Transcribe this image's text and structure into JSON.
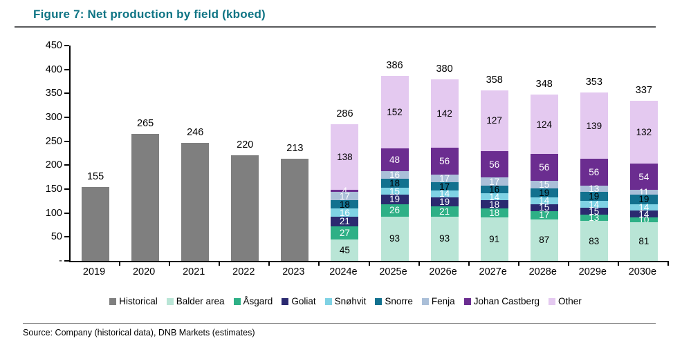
{
  "figure": {
    "title": "Figure 7: Net production by field (kboed)",
    "source": "Source: Company (historical data), DNB Markets (estimates)",
    "title_color": "#0e7484"
  },
  "chart_data": {
    "type": "bar",
    "subtype": "stacked",
    "title": "Net production by field (kboed)",
    "xlabel": "",
    "ylabel": "",
    "ylim": [
      0,
      450
    ],
    "grid": false,
    "legend_position": "bottom",
    "yticks": [
      {
        "value": 450,
        "label": "450"
      },
      {
        "value": 400,
        "label": "400"
      },
      {
        "value": 350,
        "label": "350"
      },
      {
        "value": 300,
        "label": "300"
      },
      {
        "value": 250,
        "label": "250"
      },
      {
        "value": 200,
        "label": "200"
      },
      {
        "value": 150,
        "label": "150"
      },
      {
        "value": 100,
        "label": "100"
      },
      {
        "value": 50,
        "label": "50"
      },
      {
        "value": 0,
        "label": "-"
      }
    ],
    "categories": [
      "2019",
      "2020",
      "2021",
      "2022",
      "2023",
      "2024e",
      "2025e",
      "2026e",
      "2027e",
      "2028e",
      "2029e",
      "2030e"
    ],
    "totals": [
      155,
      265,
      246,
      220,
      213,
      286,
      386,
      380,
      358,
      348,
      353,
      337
    ],
    "series": [
      {
        "name": "Historical",
        "color": "#7f7f7f",
        "label_color": "#000000",
        "inside_labels": false,
        "values": [
          155,
          265,
          246,
          220,
          213,
          0,
          0,
          0,
          0,
          0,
          0,
          0
        ]
      },
      {
        "name": "Balder area",
        "color": "#b9e5d6",
        "label_color": "#000000",
        "inside_labels": true,
        "values": [
          0,
          0,
          0,
          0,
          0,
          45,
          93,
          93,
          91,
          87,
          83,
          81
        ]
      },
      {
        "name": "Åsgard",
        "color": "#2eb086",
        "label_color": "#ffffff",
        "inside_labels": true,
        "values": [
          0,
          0,
          0,
          0,
          0,
          27,
          26,
          21,
          18,
          17,
          13,
          10
        ]
      },
      {
        "name": "Goliat",
        "color": "#2b2a70",
        "label_color": "#ffffff",
        "inside_labels": true,
        "values": [
          0,
          0,
          0,
          0,
          0,
          21,
          19,
          19,
          18,
          15,
          15,
          14
        ]
      },
      {
        "name": "Snøhvit",
        "color": "#7fd2e4",
        "label_color": "#ffffff",
        "inside_labels": true,
        "values": [
          0,
          0,
          0,
          0,
          0,
          16,
          15,
          14,
          14,
          14,
          14,
          14
        ]
      },
      {
        "name": "Snorre",
        "color": "#12718f",
        "label_color": "#000000",
        "inside_labels": true,
        "values": [
          0,
          0,
          0,
          0,
          0,
          18,
          18,
          17,
          16,
          19,
          19,
          19
        ]
      },
      {
        "name": "Fenja",
        "color": "#aabfd8",
        "label_color": "#ffffff",
        "inside_labels": true,
        "values": [
          0,
          0,
          0,
          0,
          0,
          17,
          16,
          17,
          17,
          15,
          13,
          11
        ]
      },
      {
        "name": "Johan Castberg",
        "color": "#6b2d90",
        "label_color": "#ffffff",
        "inside_labels": true,
        "values": [
          0,
          0,
          0,
          0,
          0,
          4,
          48,
          56,
          56,
          56,
          56,
          54
        ]
      },
      {
        "name": "Other",
        "color": "#e4c9f0",
        "label_color": "#000000",
        "inside_labels": true,
        "values": [
          0,
          0,
          0,
          0,
          0,
          138,
          152,
          142,
          127,
          124,
          139,
          132
        ]
      }
    ]
  }
}
